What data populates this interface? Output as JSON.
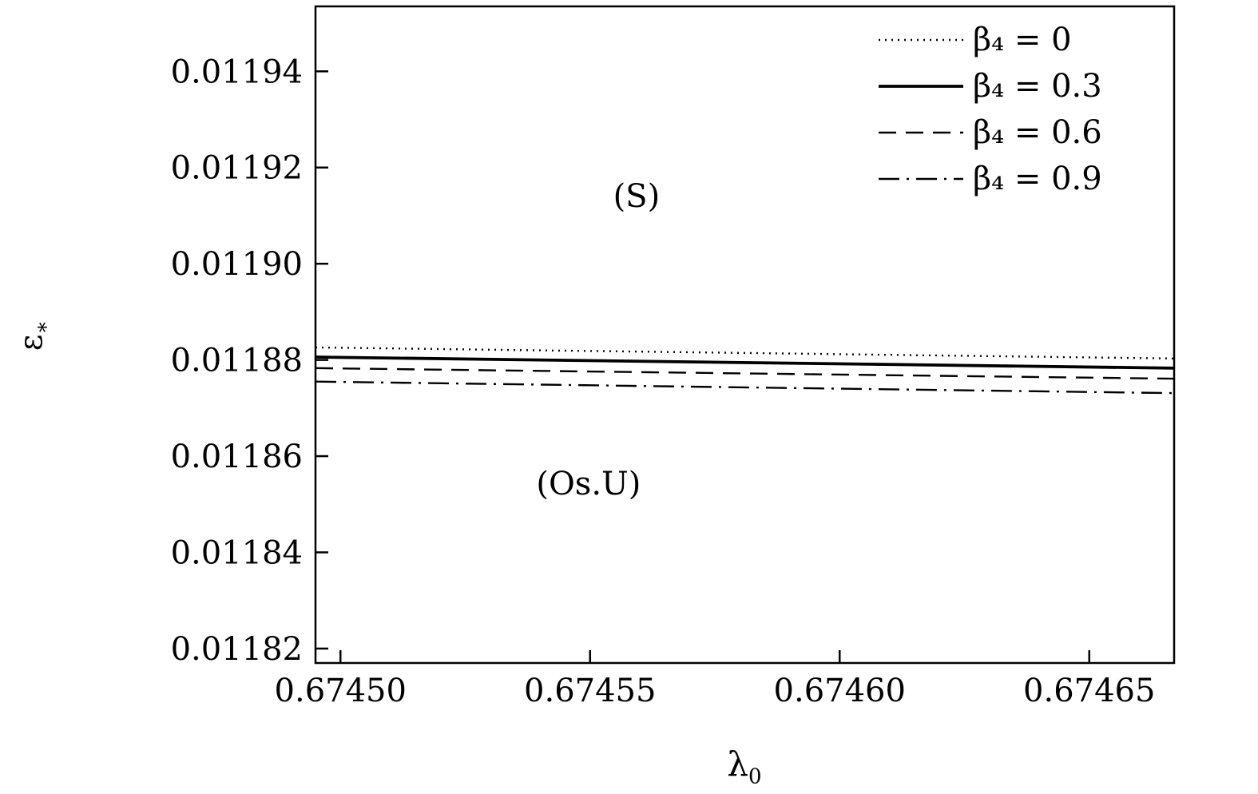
{
  "chart_data": {
    "type": "line",
    "title": "",
    "background": "#ffffff",
    "frame_color": "#000000",
    "grid": false,
    "legend_position": "top-right",
    "xlabel_base": "λ",
    "xlabel_sub": "0",
    "ylabel_base": "ε",
    "ylabel_sub": "∗",
    "xlim": [
      0.674495,
      0.674667
    ],
    "ylim": [
      0.011817,
      0.0119535
    ],
    "x_ticks": [
      0.6745,
      0.67455,
      0.6746,
      0.67465
    ],
    "x_tick_labels": [
      "0.67450",
      "0.67455",
      "0.67460",
      "0.67465"
    ],
    "y_ticks": [
      0.01182,
      0.01184,
      0.01186,
      0.01188,
      0.0119,
      0.01192,
      0.01194
    ],
    "y_tick_labels": [
      "0.01182",
      "0.01184",
      "0.01186",
      "0.01188",
      "0.01190",
      "0.01192",
      "0.01194"
    ],
    "x": [
      0.674495,
      0.674667
    ],
    "series": [
      {
        "name": "β₄ = 0",
        "style": "dotted",
        "values": [
          0.0118826,
          0.0118803
        ]
      },
      {
        "name": "β₄ = 0.3",
        "style": "solid",
        "values": [
          0.0118806,
          0.0118783
        ]
      },
      {
        "name": "β₄ = 0.6",
        "style": "dashed",
        "values": [
          0.0118783,
          0.0118761
        ]
      },
      {
        "name": "β₄ = 0.9",
        "style": "dashdot",
        "values": [
          0.0118755,
          0.0118731
        ]
      }
    ],
    "annotations": [
      {
        "text": "(S)",
        "x": 0.6745593,
        "y": 0.011914
      },
      {
        "text": "(Os.U)",
        "x": 0.6745497,
        "y": 0.0118542
      }
    ]
  }
}
